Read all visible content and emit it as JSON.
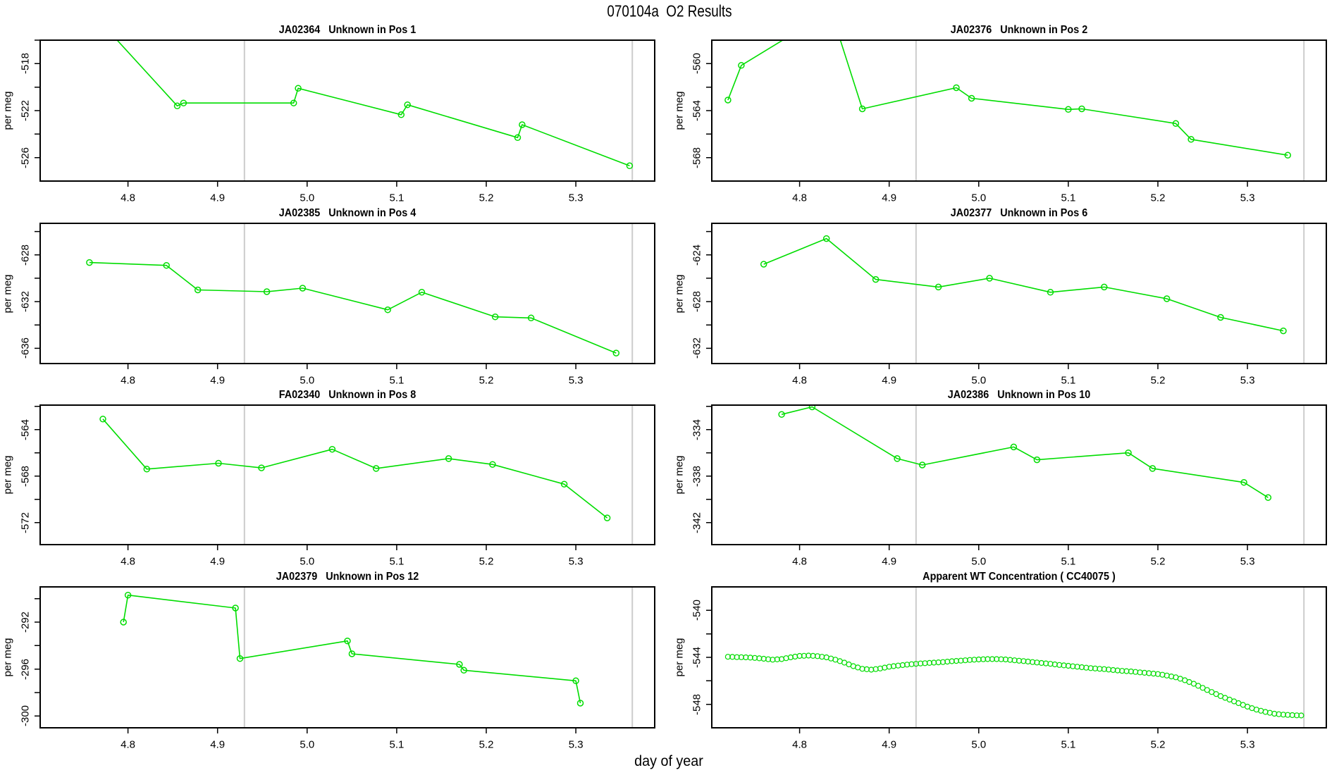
{
  "figure": {
    "title": "070104a  O2 Results",
    "xlabel": "day of year",
    "background": "#ffffff",
    "series_color": "#00dd00",
    "axis_color": "#000000",
    "refline_color": "#cccccc",
    "text_color": "#000000"
  },
  "axes": {
    "xlim": [
      4.702,
      5.388
    ],
    "xticks": [
      4.8,
      4.9,
      5.0,
      5.1,
      5.2,
      5.3
    ],
    "xtick_labels": [
      "4.8",
      "4.9",
      "5.0",
      "5.1",
      "5.2",
      "5.3"
    ],
    "vlines": [
      4.93,
      5.363
    ],
    "grid": "off",
    "legend": "none"
  },
  "chart_data": [
    {
      "type": "line",
      "name": "ja02364-pos-1",
      "title": "JA02364   Unknown in Pos 1",
      "ylabel": "per meg",
      "ylim": [
        -528.0,
        -516.0
      ],
      "yticks": [
        -526,
        -524,
        -522,
        -520,
        -518,
        -516
      ],
      "ytick_labels": [
        "-518",
        "-522",
        "-526"
      ],
      "ytick_label_values": [
        -518,
        -522,
        -526
      ],
      "x": [
        4.74,
        4.855,
        4.862,
        4.985,
        4.99,
        5.105,
        5.112,
        5.235,
        5.24,
        5.36
      ],
      "y": [
        -512.0,
        -521.6,
        -521.35,
        -521.35,
        -520.1,
        -522.35,
        -521.5,
        -524.3,
        -523.2,
        -526.7
      ],
      "marker": "open-circle",
      "marker_r": 4,
      "dense": false
    },
    {
      "type": "line",
      "name": "ja02376-pos-2",
      "title": "JA02376   Unknown in Pos 2",
      "ylabel": "per meg",
      "ylim": [
        -570.0,
        -558.0
      ],
      "yticks": [
        -568,
        -566,
        -564,
        -562,
        -560
      ],
      "ytick_labels": [
        "-560",
        "-564",
        "-568"
      ],
      "ytick_label_values": [
        -560,
        -564,
        -568
      ],
      "x": [
        4.72,
        4.735,
        4.835,
        4.87,
        4.975,
        4.992,
        5.1,
        5.115,
        5.22,
        5.237,
        5.345
      ],
      "y": [
        -563.1,
        -560.15,
        -555.5,
        -563.85,
        -562.05,
        -562.95,
        -563.9,
        -563.85,
        -565.1,
        -566.45,
        -567.8
      ],
      "marker": "open-circle",
      "marker_r": 4,
      "dense": false
    },
    {
      "type": "line",
      "name": "ja02385-pos-4",
      "title": "JA02385   Unknown in Pos 4",
      "ylabel": "per meg",
      "ylim": [
        -637.3,
        -625.3
      ],
      "yticks": [
        -636,
        -634,
        -632,
        -630,
        -628,
        -626
      ],
      "ytick_labels": [
        "-628",
        "-632",
        "-636"
      ],
      "ytick_label_values": [
        -628,
        -632,
        -636
      ],
      "x": [
        4.757,
        4.843,
        4.878,
        4.955,
        4.995,
        5.09,
        5.128,
        5.21,
        5.25,
        5.345
      ],
      "y": [
        -628.65,
        -628.9,
        -631.0,
        -631.15,
        -630.85,
        -632.7,
        -631.2,
        -633.3,
        -633.4,
        -636.4
      ],
      "marker": "open-circle",
      "marker_r": 4,
      "dense": false
    },
    {
      "type": "line",
      "name": "ja02377-pos-6",
      "title": "JA02377   Unknown in Pos 6",
      "ylabel": "per meg",
      "ylim": [
        -633.3,
        -621.3
      ],
      "yticks": [
        -632,
        -630,
        -628,
        -626,
        -624,
        -622
      ],
      "ytick_labels": [
        "-624",
        "-628",
        "-632"
      ],
      "ytick_label_values": [
        -624,
        -628,
        -632
      ],
      "x": [
        4.76,
        4.83,
        4.885,
        4.955,
        5.012,
        5.08,
        5.14,
        5.21,
        5.27,
        5.34
      ],
      "y": [
        -624.8,
        -622.6,
        -626.1,
        -626.75,
        -626.0,
        -627.2,
        -626.75,
        -627.75,
        -629.35,
        -630.5
      ],
      "marker": "open-circle",
      "marker_r": 4,
      "dense": false
    },
    {
      "type": "line",
      "name": "fa02340-pos-8",
      "title": "FA02340   Unknown in Pos 8",
      "ylabel": "per meg",
      "ylim": [
        -573.9,
        -561.9
      ],
      "yticks": [
        -572,
        -570,
        -568,
        -566,
        -564,
        -562
      ],
      "ytick_labels": [
        "-564",
        "-568",
        "-572"
      ],
      "ytick_label_values": [
        -564,
        -568,
        -572
      ],
      "x": [
        4.772,
        4.821,
        4.901,
        4.949,
        5.028,
        5.077,
        5.158,
        5.207,
        5.287,
        5.335
      ],
      "y": [
        -563.1,
        -567.4,
        -566.9,
        -567.3,
        -565.7,
        -567.35,
        -566.5,
        -567.0,
        -568.7,
        -571.6
      ],
      "marker": "open-circle",
      "marker_r": 4,
      "dense": false
    },
    {
      "type": "line",
      "name": "ja02386-pos-10",
      "title": "JA02386   Unknown in Pos 10",
      "ylabel": "per meg",
      "ylim": [
        -343.9,
        -331.9
      ],
      "yticks": [
        -342,
        -340,
        -338,
        -336,
        -334,
        -332
      ],
      "ytick_labels": [
        "-334",
        "-338",
        "-342"
      ],
      "ytick_label_values": [
        -334,
        -338,
        -342
      ],
      "x": [
        4.78,
        4.814,
        4.909,
        4.937,
        5.039,
        5.065,
        5.167,
        5.194,
        5.296,
        5.323
      ],
      "y": [
        -332.7,
        -332.05,
        -336.5,
        -337.05,
        -335.5,
        -336.6,
        -336.0,
        -337.35,
        -338.55,
        -339.85
      ],
      "marker": "open-circle",
      "marker_r": 4,
      "dense": false
    },
    {
      "type": "line",
      "name": "ja02379-pos-12",
      "title": "JA02379   Unknown in Pos 12",
      "ylabel": "per meg",
      "ylim": [
        -301.0,
        -289.0
      ],
      "yticks": [
        -300,
        -298,
        -296,
        -294,
        -292,
        -290
      ],
      "ytick_labels": [
        "-292",
        "-296",
        "-300"
      ],
      "ytick_label_values": [
        -292,
        -296,
        -300
      ],
      "x": [
        4.795,
        4.8,
        4.92,
        4.925,
        5.045,
        5.05,
        5.17,
        5.175,
        5.3,
        5.305
      ],
      "y": [
        -292.0,
        -289.7,
        -290.8,
        -295.1,
        -293.6,
        -294.7,
        -295.6,
        -296.1,
        -297.0,
        -298.9
      ],
      "marker": "open-circle",
      "marker_r": 4,
      "dense": false
    },
    {
      "type": "line",
      "name": "apparent-wt-cc40075",
      "title": "Apparent WT Concentration ( CC40075 )",
      "ylabel": "per meg",
      "ylim": [
        -550.0,
        -538.0
      ],
      "yticks": [
        -548,
        -546,
        -544,
        -542,
        -540
      ],
      "ytick_labels": [
        "-540",
        "-544",
        "-548"
      ],
      "ytick_label_values": [
        -540,
        -544,
        -548
      ],
      "x": [
        4.72,
        4.73,
        4.74,
        4.75,
        4.76,
        4.77,
        4.78,
        4.79,
        4.8,
        4.81,
        4.82,
        4.83,
        4.84,
        4.85,
        4.86,
        4.87,
        4.88,
        4.89,
        4.9,
        4.91,
        4.92,
        4.93,
        4.94,
        4.95,
        4.96,
        4.97,
        4.98,
        4.99,
        5.0,
        5.01,
        5.02,
        5.03,
        5.04,
        5.05,
        5.06,
        5.07,
        5.08,
        5.09,
        5.1,
        5.11,
        5.12,
        5.13,
        5.14,
        5.15,
        5.16,
        5.17,
        5.18,
        5.19,
        5.2,
        5.21,
        5.22,
        5.23,
        5.24,
        5.25,
        5.26,
        5.27,
        5.28,
        5.29,
        5.3,
        5.31,
        5.32,
        5.33,
        5.34,
        5.35,
        5.36
      ],
      "y": [
        -543.95,
        -543.98,
        -544.0,
        -544.05,
        -544.12,
        -544.2,
        -544.15,
        -544.0,
        -543.88,
        -543.85,
        -543.9,
        -544.0,
        -544.2,
        -544.45,
        -544.75,
        -544.98,
        -545.05,
        -544.95,
        -544.8,
        -544.7,
        -544.62,
        -544.55,
        -544.5,
        -544.45,
        -544.4,
        -544.33,
        -544.28,
        -544.22,
        -544.18,
        -544.15,
        -544.15,
        -544.18,
        -544.25,
        -544.32,
        -544.4,
        -544.48,
        -544.55,
        -544.65,
        -544.72,
        -544.8,
        -544.88,
        -544.95,
        -545.0,
        -545.08,
        -545.15,
        -545.2,
        -545.28,
        -545.35,
        -545.42,
        -545.55,
        -545.7,
        -545.95,
        -546.25,
        -546.6,
        -546.95,
        -547.3,
        -547.6,
        -547.9,
        -548.2,
        -548.45,
        -548.65,
        -548.8,
        -548.88,
        -548.92,
        -548.95
      ],
      "marker": "open-circle",
      "marker_r": 3.5,
      "dense": true
    }
  ]
}
